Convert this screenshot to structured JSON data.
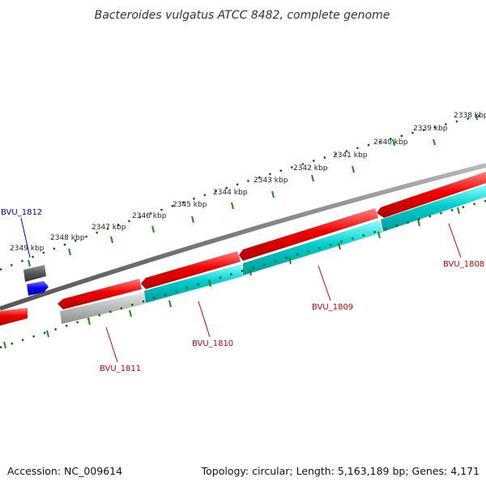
{
  "title": "Bacteroides vulgatus ATCC 8482, complete genome",
  "footer": {
    "accession": "Accession: NC_009614",
    "summary": "Topology: circular; Length: 5,163,189 bp; Genes: 4,171"
  },
  "scale": {
    "unit": "kbp",
    "ticks": [
      "2338 kbp",
      "2339 kbp",
      "2340 kbp",
      "2341 kbp",
      "2342 kbp",
      "2343 kbp",
      "2344 kbp",
      "2345 kbp",
      "2346 kbp",
      "2347 kbp",
      "2348 kbp",
      "2349 kbp"
    ]
  },
  "genes": [
    {
      "label": "BVU_1808",
      "label_color": "#cc0000"
    },
    {
      "label": "BVU_1809",
      "label_color": "#cc0000"
    },
    {
      "label": "BVU_1810",
      "label_color": "#cc0000"
    },
    {
      "label": "BVU_1811",
      "label_color": "#cc0000"
    },
    {
      "label": "BVU_1812",
      "label_color": "#0000aa"
    }
  ],
  "colors": {
    "backbone": "#7a7a7a",
    "cds_forward": "#ee0000",
    "cds_reverse": "#00c8c8",
    "cds_gray": "#b0b0b0",
    "cds_dark": "#555555",
    "cds_blue": "#0000ee",
    "scale_dots": "#006600",
    "scale_ticks": "#1a8a1a"
  }
}
